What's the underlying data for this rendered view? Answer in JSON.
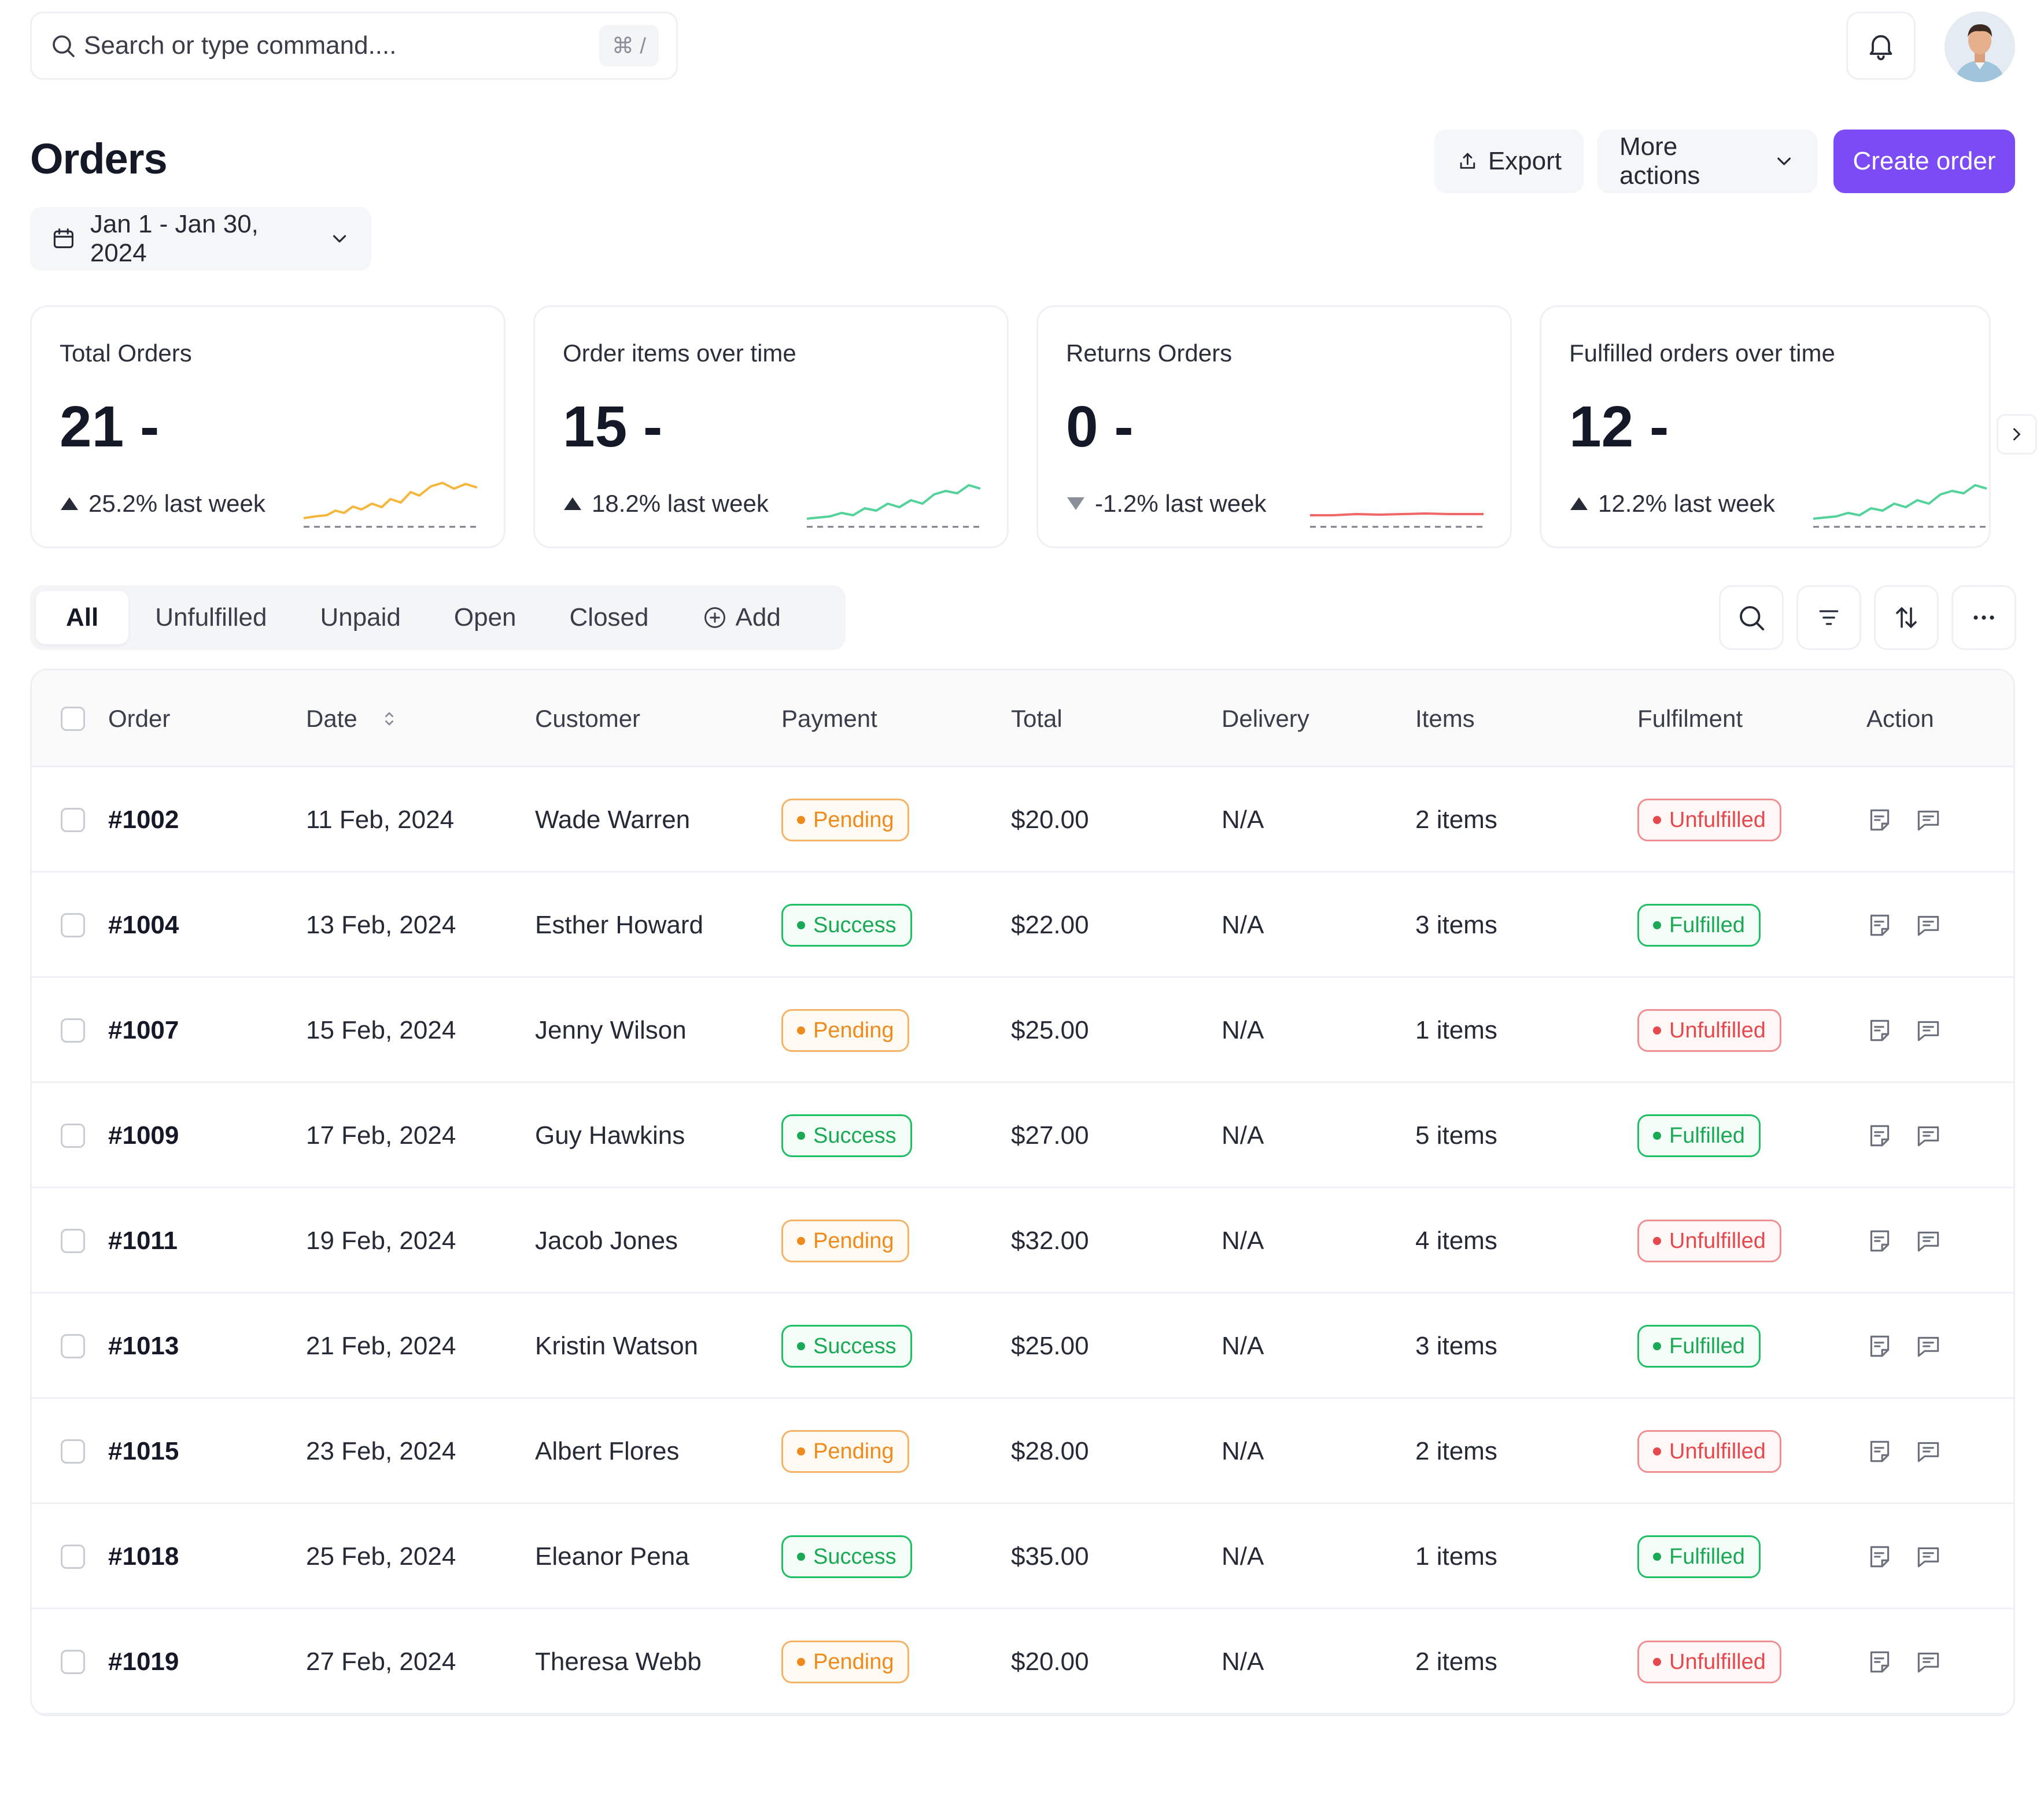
{
  "topbar": {
    "search_placeholder": "Search or type command....",
    "shortcut": "⌘ /"
  },
  "header": {
    "title": "Orders",
    "export_label": "Export",
    "more_actions_label": "More actions",
    "create_label": "Create order",
    "date_range": "Jan 1 - Jan 30, 2024"
  },
  "colors": {
    "accent": "#7b4cf5",
    "spark_orange": "#f5b63b",
    "spark_green": "#53d39a",
    "spark_red": "#f06767"
  },
  "stats": [
    {
      "label": "Total Orders",
      "value": "21 -",
      "delta": "25.2% last week",
      "trend": "up",
      "spark": "orange"
    },
    {
      "label": "Order items over time",
      "value": "15 -",
      "delta": "18.2% last week",
      "trend": "up",
      "spark": "green"
    },
    {
      "label": "Returns Orders",
      "value": "0 -",
      "delta": "-1.2% last week",
      "trend": "down",
      "spark": "red"
    },
    {
      "label": "Fulfilled orders over time",
      "value": "12 -",
      "delta": "12.2% last week",
      "trend": "up",
      "spark": "green"
    }
  ],
  "tabs": [
    "All",
    "Unfulfilled",
    "Unpaid",
    "Open",
    "Closed",
    "Add"
  ],
  "table": {
    "columns": [
      "Order",
      "Date",
      "Customer",
      "Payment",
      "Total",
      "Delivery",
      "Items",
      "Fulfilment",
      "Action"
    ],
    "rows": [
      {
        "order": "#1002",
        "date": "11 Feb, 2024",
        "customer": "Wade Warren",
        "payment": "Pending",
        "total": "$20.00",
        "delivery": "N/A",
        "items": "2 items",
        "fulfilment": "Unfulfilled"
      },
      {
        "order": "#1004",
        "date": "13 Feb, 2024",
        "customer": "Esther Howard",
        "payment": "Success",
        "total": "$22.00",
        "delivery": "N/A",
        "items": "3 items",
        "fulfilment": "Fulfilled"
      },
      {
        "order": "#1007",
        "date": "15 Feb, 2024",
        "customer": "Jenny Wilson",
        "payment": "Pending",
        "total": "$25.00",
        "delivery": "N/A",
        "items": "1 items",
        "fulfilment": "Unfulfilled"
      },
      {
        "order": "#1009",
        "date": "17 Feb, 2024",
        "customer": "Guy Hawkins",
        "payment": "Success",
        "total": "$27.00",
        "delivery": "N/A",
        "items": "5 items",
        "fulfilment": "Fulfilled"
      },
      {
        "order": "#1011",
        "date": "19 Feb, 2024",
        "customer": "Jacob Jones",
        "payment": "Pending",
        "total": "$32.00",
        "delivery": "N/A",
        "items": "4 items",
        "fulfilment": "Unfulfilled"
      },
      {
        "order": "#1013",
        "date": "21 Feb, 2024",
        "customer": "Kristin Watson",
        "payment": "Success",
        "total": "$25.00",
        "delivery": "N/A",
        "items": "3 items",
        "fulfilment": "Fulfilled"
      },
      {
        "order": "#1015",
        "date": "23 Feb, 2024",
        "customer": "Albert Flores",
        "payment": "Pending",
        "total": "$28.00",
        "delivery": "N/A",
        "items": "2 items",
        "fulfilment": "Unfulfilled"
      },
      {
        "order": "#1018",
        "date": "25 Feb, 2024",
        "customer": "Eleanor Pena",
        "payment": "Success",
        "total": "$35.00",
        "delivery": "N/A",
        "items": "1 items",
        "fulfilment": "Fulfilled"
      },
      {
        "order": "#1019",
        "date": "27 Feb, 2024",
        "customer": "Theresa Webb",
        "payment": "Pending",
        "total": "$20.00",
        "delivery": "N/A",
        "items": "2 items",
        "fulfilment": "Unfulfilled"
      }
    ]
  },
  "icons": {
    "search": "search-icon",
    "bell": "bell-icon",
    "export": "upload-icon",
    "chevron": "chevron-down-icon",
    "calendar": "calendar-icon",
    "filter": "filter-icon",
    "sort": "sort-icon",
    "more": "ellipsis-icon",
    "note": "note-icon",
    "chat": "chat-icon"
  }
}
